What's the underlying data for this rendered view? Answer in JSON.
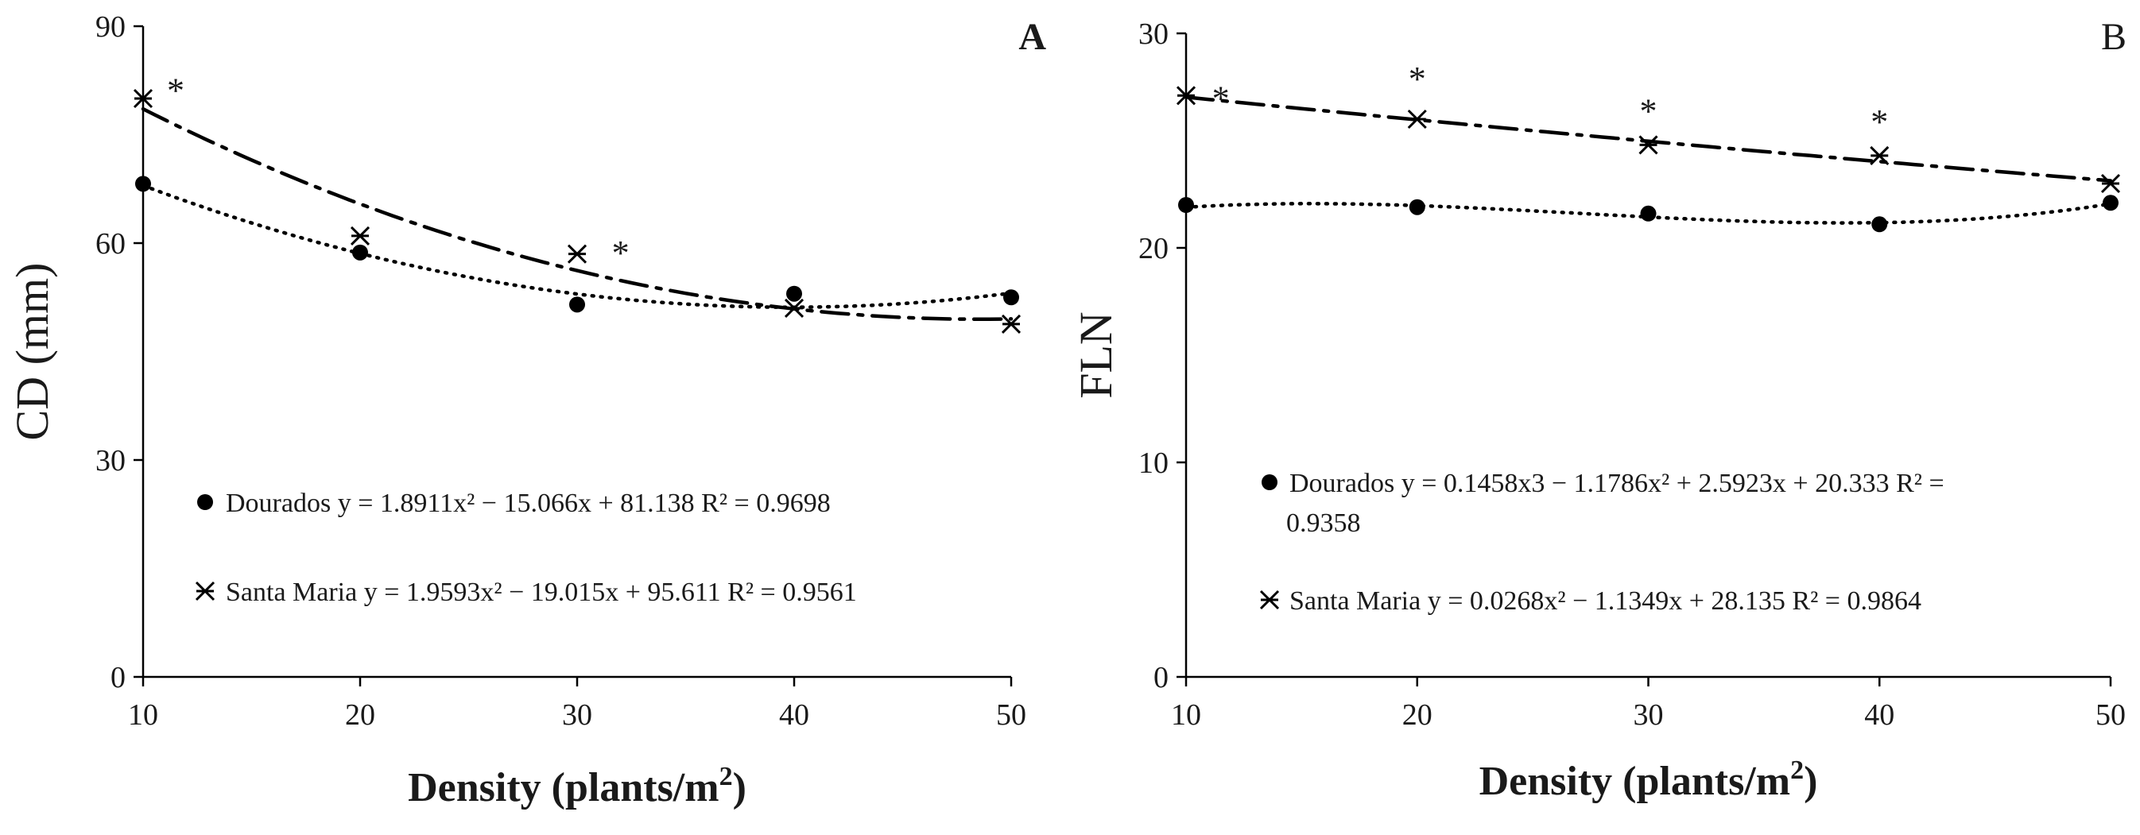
{
  "chart_data": [
    {
      "type": "scatter",
      "panel": "A",
      "panel_label": "A",
      "xlabel": "Density (plants/m",
      "xlabel_sup": "2",
      "xlabel_close": ")",
      "ylabel": "CD (mm)",
      "xlim": [
        10,
        50
      ],
      "ylim": [
        0,
        90
      ],
      "x_ticks": [
        "10",
        "20",
        "30",
        "40",
        "50"
      ],
      "y_ticks": [
        "0",
        "30",
        "60",
        "90"
      ],
      "legend_position": "center-left",
      "series": [
        {
          "name": "Dourados",
          "marker": "circle",
          "line_style": "dotted",
          "x": [
            10,
            20,
            30,
            40,
            50
          ],
          "y": [
            68.2,
            58.7,
            51.5,
            53.0,
            52.5
          ],
          "trend": {
            "a": 1.8911,
            "b": -15.066,
            "c": 81.138,
            "d": 0
          },
          "legend_lines": [
            "Dourados y = 1.8911x² − 15.066x + 81.138 R² = 0.9698"
          ]
        },
        {
          "name": "Santa Maria",
          "marker": "asterisk",
          "line_style": "dashdot",
          "x": [
            10,
            20,
            30,
            40,
            50
          ],
          "y": [
            80.0,
            61.0,
            58.5,
            51.0,
            48.8
          ],
          "trend": {
            "a": 1.9593,
            "b": -19.015,
            "c": 95.611,
            "d": 0
          },
          "legend_lines": [
            "Santa Maria y = 1.9593x² − 19.015x + 95.611 R² = 0.9561"
          ]
        }
      ],
      "annotations": [
        {
          "text": "*",
          "x": 11.5,
          "y": 81.5
        },
        {
          "text": "*",
          "x": 32.0,
          "y": 59.0
        }
      ]
    },
    {
      "type": "scatter",
      "panel": "B",
      "panel_label": "B",
      "xlabel": "Density (plants/m",
      "xlabel_sup": "2",
      "xlabel_close": ")",
      "ylabel": "FLN",
      "xlim": [
        10,
        50
      ],
      "ylim": [
        0,
        30
      ],
      "x_ticks": [
        "10",
        "20",
        "30",
        "40",
        "50"
      ],
      "y_ticks": [
        "0",
        "10",
        "20",
        "30"
      ],
      "legend_position": "center",
      "series": [
        {
          "name": "Dourados",
          "marker": "circle",
          "line_style": "dotted",
          "x": [
            10,
            20,
            30,
            40,
            50
          ],
          "y": [
            22.0,
            21.9,
            21.6,
            21.1,
            22.1
          ],
          "trend": {
            "a": -1.1786,
            "b": 2.5923,
            "c": 20.333,
            "d": 0.1458
          },
          "legend_lines": [
            "Dourados y = 0.1458x3 − 1.1786x² + 2.5923x + 20.333 R² =",
            "0.9358"
          ]
        },
        {
          "name": "Santa Maria",
          "marker": "asterisk",
          "line_style": "dashdot",
          "x": [
            10,
            20,
            30,
            40,
            50
          ],
          "y": [
            27.1,
            26.0,
            24.8,
            24.3,
            23.0
          ],
          "trend": {
            "a": 0.0268,
            "b": -1.1349,
            "c": 28.135,
            "d": 0
          },
          "legend_lines": [
            "Santa Maria y = 0.0268x² − 1.1349x + 28.135 R² = 0.9864"
          ]
        }
      ],
      "annotations": [
        {
          "text": "*",
          "x": 11.5,
          "y": 27.1
        },
        {
          "text": "*",
          "x": 20.0,
          "y": 28.0
        },
        {
          "text": "*",
          "x": 30.0,
          "y": 26.5
        },
        {
          "text": "*",
          "x": 40.0,
          "y": 26.0
        }
      ]
    }
  ]
}
